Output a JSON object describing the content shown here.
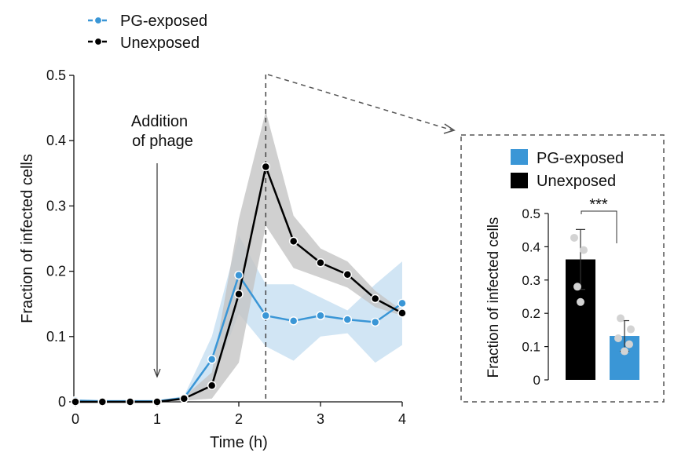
{
  "colors": {
    "pg": "#3a96d6",
    "pg_band": "#c9e0f2",
    "unexposed": "#000000",
    "unexposed_band": "#c4c4c4",
    "inset_dot": "#d3d3d3",
    "frame": "#555555"
  },
  "chart_data": [
    {
      "type": "line",
      "xlabel": "Time (h)",
      "ylabel": "Fraction of infected cells",
      "xlim": [
        0,
        4
      ],
      "ylim": [
        0,
        0.5
      ],
      "xticks": [
        "0",
        "1",
        "2",
        "3",
        "4"
      ],
      "yticks": [
        "0",
        "0.1",
        "0.2",
        "0.3",
        "0.4",
        "0.5"
      ],
      "legend": [
        "PG-exposed",
        "Unexposed"
      ],
      "legend_position": "top-left",
      "annotation": {
        "text_lines": [
          "Addition",
          "of phage"
        ],
        "x": 1
      },
      "zoom_marker_x": 2.33,
      "x": [
        0,
        0.33,
        0.67,
        1,
        1.33,
        1.67,
        2,
        2.33,
        2.67,
        3,
        3.33,
        3.67,
        4
      ],
      "series": [
        {
          "name": "PG-exposed",
          "values": [
            0.002,
            0.001,
            0.001,
            0.001,
            0.006,
            0.065,
            0.194,
            0.132,
            0.124,
            0.132,
            0.126,
            0.122,
            0.151
          ],
          "band_upper": [
            0.003,
            0.002,
            0.002,
            0.002,
            0.009,
            0.1,
            0.255,
            0.18,
            0.18,
            0.16,
            0.14,
            0.18,
            0.215
          ],
          "band_lower": [
            0.001,
            0,
            0,
            0,
            0.003,
            0.03,
            0.135,
            0.085,
            0.063,
            0.1,
            0.105,
            0.06,
            0.087
          ]
        },
        {
          "name": "Unexposed",
          "values": [
            0,
            0,
            0,
            0,
            0.005,
            0.025,
            0.165,
            0.36,
            0.246,
            0.213,
            0.195,
            0.158,
            0.136
          ],
          "band_upper": [
            0.001,
            0.001,
            0.001,
            0.001,
            0.008,
            0.045,
            0.28,
            0.445,
            0.285,
            0.235,
            0.215,
            0.17,
            0.14
          ],
          "band_lower": [
            0,
            0,
            0,
            0,
            0.002,
            0.005,
            0.06,
            0.27,
            0.205,
            0.19,
            0.175,
            0.145,
            0.132
          ]
        }
      ]
    },
    {
      "type": "bar",
      "ylabel": "Fraction of infected cells",
      "ylim": [
        0,
        0.5
      ],
      "yticks": [
        "0",
        "0.1",
        "0.2",
        "0.3",
        "0.4",
        "0.5"
      ],
      "legend": [
        "PG-exposed",
        "Unexposed"
      ],
      "legend_position": "top",
      "significance": "***",
      "bars": [
        {
          "name": "Unexposed",
          "value": 0.362,
          "error": 0.09,
          "points": [
            0.427,
            0.39,
            0.28,
            0.234
          ]
        },
        {
          "name": "PG-exposed",
          "value": 0.132,
          "error": 0.046,
          "points": [
            0.185,
            0.152,
            0.125,
            0.107,
            0.086
          ]
        }
      ]
    }
  ]
}
